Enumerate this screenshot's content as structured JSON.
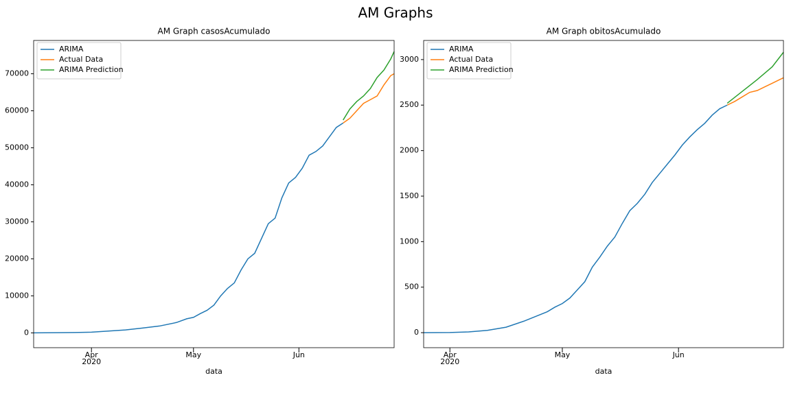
{
  "title": "AM Graphs",
  "chart_data": [
    {
      "type": "line",
      "title": "AM Graph casosAcumulado",
      "xlabel": "data",
      "xtick_sublabel": "2020",
      "xlim": [
        -17,
        89
      ],
      "ylim": [
        -4000,
        79000
      ],
      "xticks": [
        {
          "value": 0,
          "label": "Apr"
        },
        {
          "value": 30,
          "label": "May"
        },
        {
          "value": 61,
          "label": "Jun"
        }
      ],
      "yticks": [
        0,
        10000,
        20000,
        30000,
        40000,
        50000,
        60000,
        70000
      ],
      "legend": "upper left",
      "series": [
        {
          "name": "ARIMA",
          "color": "#1f77b4",
          "x": [
            -17,
            -10,
            -5,
            0,
            5,
            10,
            15,
            20,
            25,
            28,
            30,
            32,
            34,
            36,
            38,
            40,
            42,
            44,
            46,
            48,
            50,
            52,
            54,
            56,
            58,
            60,
            62,
            64,
            66,
            68,
            70,
            72,
            74
          ],
          "values": [
            0,
            50,
            100,
            200,
            500,
            800,
            1300,
            1850,
            2800,
            3800,
            4200,
            5200,
            6100,
            7500,
            10000,
            12000,
            13500,
            17000,
            20000,
            21500,
            25500,
            29500,
            31000,
            36500,
            40500,
            42000,
            44500,
            48000,
            49000,
            50500,
            53000,
            55500,
            56700
          ]
        },
        {
          "name": "Actual Data",
          "color": "#ff7f0e",
          "x": [
            74,
            76,
            78,
            80,
            82,
            84,
            86,
            88,
            89
          ],
          "values": [
            56700,
            58000,
            60000,
            62000,
            63000,
            64000,
            67000,
            69500,
            70000
          ]
        },
        {
          "name": "ARIMA Prediction",
          "color": "#2ca02c",
          "x": [
            74,
            76,
            78,
            80,
            82,
            84,
            86,
            88,
            89
          ],
          "values": [
            57500,
            60500,
            62500,
            64000,
            66000,
            69000,
            71000,
            74000,
            76000
          ]
        }
      ]
    },
    {
      "type": "line",
      "title": "AM Graph obitosAcumulado",
      "xlabel": "data",
      "xtick_sublabel": "2020",
      "xlim": [
        -7,
        89
      ],
      "ylim": [
        -165,
        3210
      ],
      "xticks": [
        {
          "value": 0,
          "label": "Apr"
        },
        {
          "value": 30,
          "label": "May"
        },
        {
          "value": 61,
          "label": "Jun"
        }
      ],
      "yticks": [
        0,
        500,
        1000,
        1500,
        2000,
        2500,
        3000
      ],
      "legend": "upper left",
      "series": [
        {
          "name": "ARIMA",
          "color": "#1f77b4",
          "x": [
            -7,
            0,
            5,
            10,
            15,
            20,
            23,
            26,
            28,
            30,
            32,
            34,
            36,
            38,
            40,
            42,
            44,
            46,
            48,
            50,
            52,
            54,
            56,
            58,
            60,
            62,
            64,
            66,
            68,
            70,
            72,
            74
          ],
          "values": [
            0,
            2,
            8,
            25,
            60,
            130,
            180,
            230,
            280,
            320,
            380,
            470,
            560,
            720,
            830,
            950,
            1050,
            1200,
            1340,
            1420,
            1520,
            1650,
            1750,
            1850,
            1950,
            2060,
            2150,
            2230,
            2300,
            2390,
            2460,
            2500
          ]
        },
        {
          "name": "Actual Data",
          "color": "#ff7f0e",
          "x": [
            74,
            76,
            78,
            80,
            82,
            84,
            86,
            88,
            89
          ],
          "values": [
            2500,
            2540,
            2590,
            2640,
            2660,
            2700,
            2740,
            2780,
            2800
          ]
        },
        {
          "name": "ARIMA Prediction",
          "color": "#2ca02c",
          "x": [
            74,
            78,
            82,
            86,
            89
          ],
          "values": [
            2520,
            2650,
            2780,
            2920,
            3080
          ]
        }
      ]
    }
  ]
}
